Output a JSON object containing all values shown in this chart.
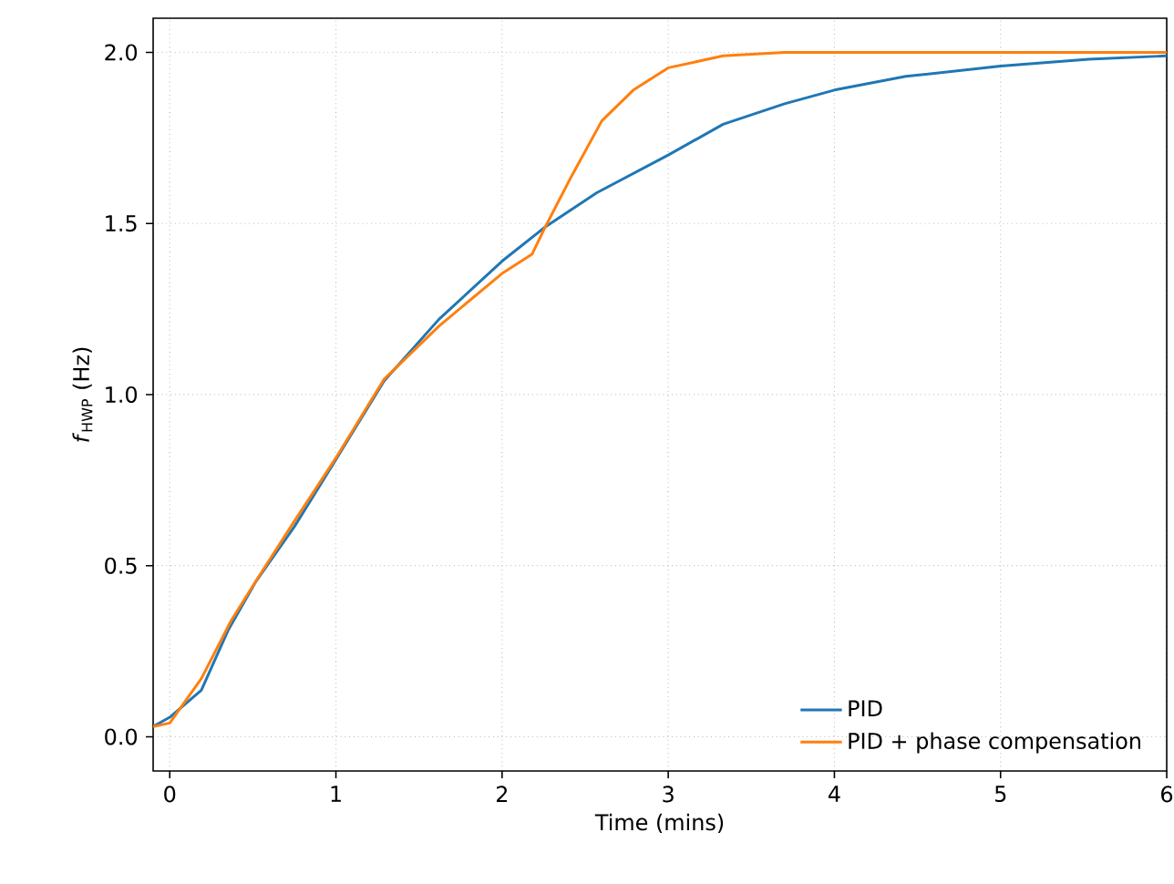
{
  "chart_data": {
    "type": "line",
    "xlabel": "Time (mins)",
    "ylabel": "*f*$_{HWP}$ (Hz)",
    "xlim": [
      -0.1,
      6
    ],
    "ylim": [
      -0.1,
      2.1
    ],
    "xticks": [
      0,
      1,
      2,
      3,
      4,
      5,
      6
    ],
    "yticks": [
      {
        "value": 0,
        "label": "0.0"
      },
      {
        "value": 0.5,
        "label": "0.5"
      },
      {
        "value": 1,
        "label": "1.0"
      },
      {
        "value": 1.5,
        "label": "1.5"
      },
      {
        "value": 2,
        "label": "2.0"
      }
    ],
    "grid": true,
    "legend": "bottom right",
    "line_style": "solid",
    "marker": "none",
    "series": [
      {
        "name": "PID",
        "color": "#1f77b4",
        "x": [
          -0.1,
          0,
          0.19,
          0.35,
          0.52,
          0.75,
          1.0,
          1.29,
          1.62,
          2.0,
          2.26,
          2.57,
          3.0,
          3.33,
          3.7,
          4.0,
          4.43,
          5.0,
          5.53,
          6.0
        ],
        "values": [
          0.03,
          0.057,
          0.136,
          0.31,
          0.455,
          0.614,
          0.81,
          1.04,
          1.22,
          1.39,
          1.49,
          1.59,
          1.7,
          1.79,
          1.85,
          1.89,
          1.93,
          1.96,
          1.98,
          1.99
        ]
      },
      {
        "name": "PID + phase compensation",
        "color": "#ff7f0e",
        "x": [
          -0.1,
          0,
          0.19,
          0.37,
          0.53,
          0.75,
          1.0,
          1.29,
          1.62,
          2.0,
          2.18,
          2.26,
          2.42,
          2.6,
          2.79,
          3.0,
          3.33,
          3.7,
          4.5,
          6.0
        ],
        "values": [
          0.03,
          0.04,
          0.17,
          0.34,
          0.464,
          0.63,
          0.815,
          1.045,
          1.2,
          1.354,
          1.41,
          1.49,
          1.64,
          1.8,
          1.89,
          1.955,
          1.99,
          2.0,
          2.0,
          2.0
        ]
      }
    ]
  }
}
